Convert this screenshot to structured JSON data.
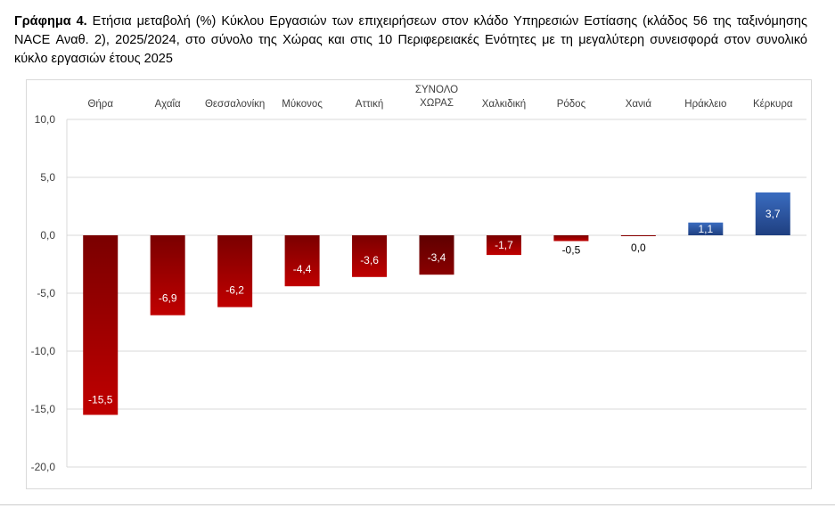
{
  "title_bold": "Γράφημα 4.",
  "title_rest": " Ετήσια μεταβολή (%) Κύκλου Εργασιών των επιχειρήσεων στον κλάδο Υπηρεσιών Εστίασης (κλάδος 56 της ταξινόμησης NACE Αναθ. 2), 2025/2024, στο σύνολο της Χώρας και στις 10 Περιφερειακές Ενότητες με τη μεγαλύτερη συνεισφορά στον συνολικό κύκλο εργασιών έτους 2025",
  "chart_data": {
    "type": "bar",
    "categories": [
      "Θήρα",
      "Αχαΐα",
      "Θεσσαλονίκη",
      "Μύκονος",
      "Αττική",
      "ΣΥΝΟΛΟ ΧΩΡΑΣ",
      "Χαλκιδική",
      "Ρόδος",
      "Χανιά",
      "Ηράκλειο",
      "Κέρκυρα"
    ],
    "values": [
      -15.5,
      -6.9,
      -6.2,
      -4.4,
      -3.6,
      -3.4,
      -1.7,
      -0.5,
      0.0,
      1.1,
      3.7
    ],
    "data_labels": [
      "-15,5",
      "-6,9",
      "-6,2",
      "-4,4",
      "-3,6",
      "-3,4",
      "-1,7",
      "-0,5",
      "0,0",
      "1,1",
      "3,7"
    ],
    "ylim": [
      -20,
      10
    ],
    "yticks": [
      10,
      5,
      0,
      -5,
      -10,
      -15,
      -20
    ],
    "ytick_labels": [
      "10,0",
      "5,0",
      "0,0",
      "-5,0",
      "-10,0",
      "-15,0",
      "-20,0"
    ],
    "grid": true,
    "category_labels_position": "top",
    "colors": {
      "negative": "#c00000",
      "negative_top": "#7a0000",
      "total": "#7a0000",
      "positive": "#3a6cc0",
      "positive_top": "#1f3f80"
    }
  }
}
